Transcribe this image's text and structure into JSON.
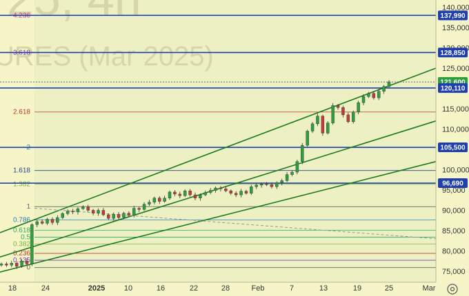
{
  "watermark": {
    "line1": "25, 4h",
    "line2": "URES (Mar 2025)"
  },
  "chart_data": {
    "type": "candlestick",
    "ylim": [
      73000,
      142000
    ],
    "y_ticks": [
      "140,000",
      "135,000",
      "130,000",
      "125,000",
      "115,000",
      "110,000",
      "100,000",
      "95,000",
      "90,000",
      "85,000",
      "80,000",
      "75,000"
    ],
    "x_ticks": [
      "18",
      "24",
      "2025",
      "10",
      "16",
      "22",
      "28",
      "Feb",
      "7",
      "13",
      "19",
      "25",
      "Mar"
    ],
    "fib_levels": [
      {
        "label": "4.236",
        "price": 137990,
        "color": "#c8368c"
      },
      {
        "label": "3.618",
        "price": 128850,
        "color": "#7a3fb0"
      },
      {
        "label": "2.618",
        "price": 114200,
        "color": "#c0392b"
      },
      {
        "label": "2",
        "price": 105500,
        "color": "#2980b9"
      },
      {
        "label": "1.618",
        "price": 99800,
        "color": "#2c3e90"
      },
      {
        "label": "1.382",
        "price": 96400,
        "color": "#7db33a"
      },
      {
        "label": "1",
        "price": 90900,
        "color": "#666666"
      },
      {
        "label": "0.786",
        "price": 87600,
        "color": "#2980b9"
      },
      {
        "label": "0.618",
        "price": 85100,
        "color": "#27ae60"
      },
      {
        "label": "0.5",
        "price": 83400,
        "color": "#27ae60"
      },
      {
        "label": "0.382",
        "price": 81700,
        "color": "#7db33a"
      },
      {
        "label": "0.236",
        "price": 79400,
        "color": "#c0392b"
      },
      {
        "label": "0.135",
        "price": 77700,
        "color": "#7a3fb0"
      },
      {
        "label": "0",
        "price": 75900,
        "color": "#666666"
      }
    ],
    "price_badges": [
      {
        "label": "137,990",
        "price": 137990
      },
      {
        "label": "128,850",
        "price": 128850
      },
      {
        "label": "121,600",
        "price": 121600
      },
      {
        "label": "120,110",
        "price": 120110
      },
      {
        "label": "105,500",
        "price": 105500
      },
      {
        "label": "96,690",
        "price": 96690
      }
    ],
    "horizontal_levels": [
      137990,
      128850,
      120110,
      105500,
      96690
    ],
    "current_price": 121600,
    "channel_lines": [
      {
        "p1": [
          0,
          84500
        ],
        "p2": [
          632,
          125000
        ]
      },
      {
        "p1": [
          0,
          78500
        ],
        "p2": [
          632,
          112000
        ]
      },
      {
        "p1": [
          0,
          74800
        ],
        "p2": [
          632,
          102000
        ]
      }
    ],
    "dashed_line": {
      "p1": [
        50,
        90500
      ],
      "p2": [
        632,
        83000
      ]
    },
    "candle_closes": [
      76800,
      76500,
      77000,
      76200,
      77500,
      76800,
      86500,
      87200,
      86800,
      87800,
      87000,
      88200,
      89200,
      89800,
      89600,
      90400,
      90800,
      90000,
      89300,
      90000,
      88900,
      88000,
      89000,
      88200,
      89300,
      88800,
      90500,
      90200,
      91500,
      92000,
      93000,
      92200,
      93000,
      94500,
      94000,
      93600,
      94800,
      93800,
      93000,
      93800,
      94400,
      94900,
      95500,
      95300,
      94800,
      94200,
      93800,
      94700,
      94200,
      95800,
      96200,
      96500,
      96300,
      95800,
      96800,
      97300,
      98800,
      99400,
      102000,
      106000,
      109500,
      111300,
      113200,
      109000,
      111500,
      115800,
      115300,
      113500,
      111800,
      114200,
      116500,
      118000,
      118800,
      117700,
      119300,
      120500,
      121600
    ]
  }
}
